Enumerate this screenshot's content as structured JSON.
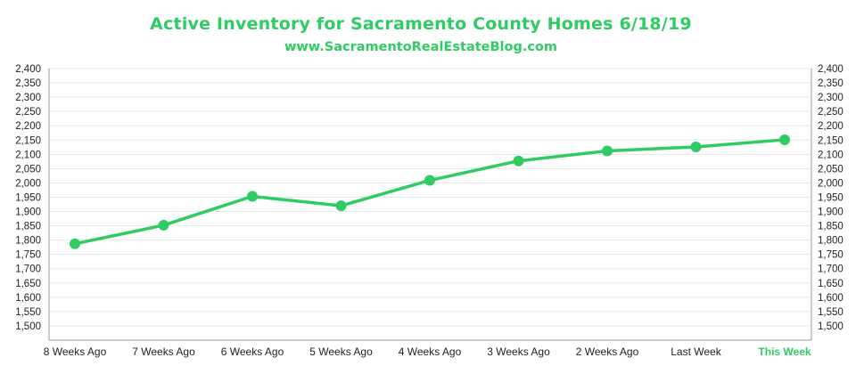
{
  "title": "Active Inventory for Sacramento County Homes 6/18/19",
  "subtitle": "www.SacramentoRealEstateBlog.com",
  "colors": {
    "accent": "#2ecc63",
    "grid": "#e6e6e6",
    "axis": "#999999",
    "text": "#222222"
  },
  "chart_data": {
    "type": "line",
    "categories": [
      "8 Weeks Ago",
      "7 Weeks Ago",
      "6 Weeks Ago",
      "5 Weeks Ago",
      "4 Weeks Ago",
      "3 Weeks Ago",
      "2 Weeks Ago",
      "Last Week",
      "This Week"
    ],
    "highlight_category": "This Week",
    "values": [
      1787,
      1852,
      1953,
      1920,
      2009,
      2077,
      2112,
      2126,
      2151
    ],
    "title": "Active Inventory for Sacramento County Homes 6/18/19",
    "subtitle": "www.SacramentoRealEstateBlog.com",
    "xlabel": "",
    "ylabel": "",
    "ylim": [
      1450,
      2400
    ],
    "yticks": [
      2400,
      2350,
      2300,
      2250,
      2200,
      2150,
      2100,
      2050,
      2000,
      1950,
      1900,
      1850,
      1800,
      1750,
      1700,
      1650,
      1600,
      1550,
      1500
    ],
    "ytick_labels": [
      "2,400",
      "2,350",
      "2,300",
      "2,250",
      "2,200",
      "2,150",
      "2,100",
      "2,050",
      "2,000",
      "1,950",
      "1,900",
      "1,850",
      "1,800",
      "1,750",
      "1,700",
      "1,650",
      "1,600",
      "1,550",
      "1,500"
    ],
    "grid": true,
    "secondary_y_axis": true,
    "legend": "none"
  }
}
